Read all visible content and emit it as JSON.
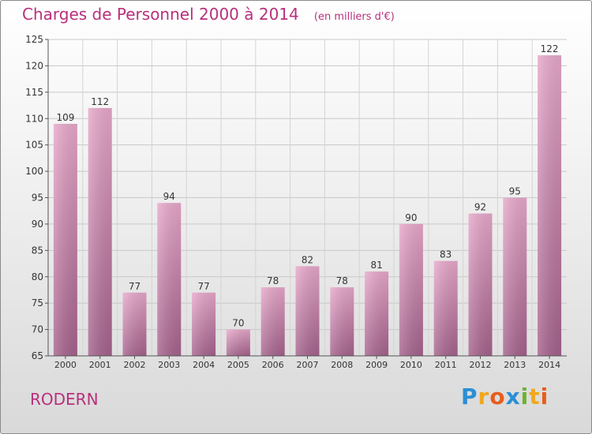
{
  "header": {
    "title": "Charges de Personnel 2000 à 2014",
    "subtitle": "(en milliers d'€)"
  },
  "footer": {
    "commune": "RODERN",
    "logo_text": "Proxiti"
  },
  "colors": {
    "title": "#b8307c",
    "bar_top": "#e6a3c8",
    "bar_bottom": "#a3608a"
  },
  "chart_data": {
    "type": "bar",
    "title": "Charges de Personnel 2000 à 2014",
    "subtitle": "(en milliers d'€)",
    "categories": [
      "2000",
      "2001",
      "2002",
      "2003",
      "2004",
      "2005",
      "2006",
      "2007",
      "2008",
      "2009",
      "2010",
      "2011",
      "2012",
      "2013",
      "2014"
    ],
    "values": [
      109,
      112,
      77,
      94,
      77,
      70,
      78,
      82,
      78,
      81,
      90,
      83,
      92,
      95,
      122
    ],
    "ylim": [
      65,
      125
    ],
    "yticks": [
      65,
      70,
      75,
      80,
      85,
      90,
      95,
      100,
      105,
      110,
      115,
      120,
      125
    ],
    "grid": true,
    "xlabel": "",
    "ylabel": ""
  }
}
